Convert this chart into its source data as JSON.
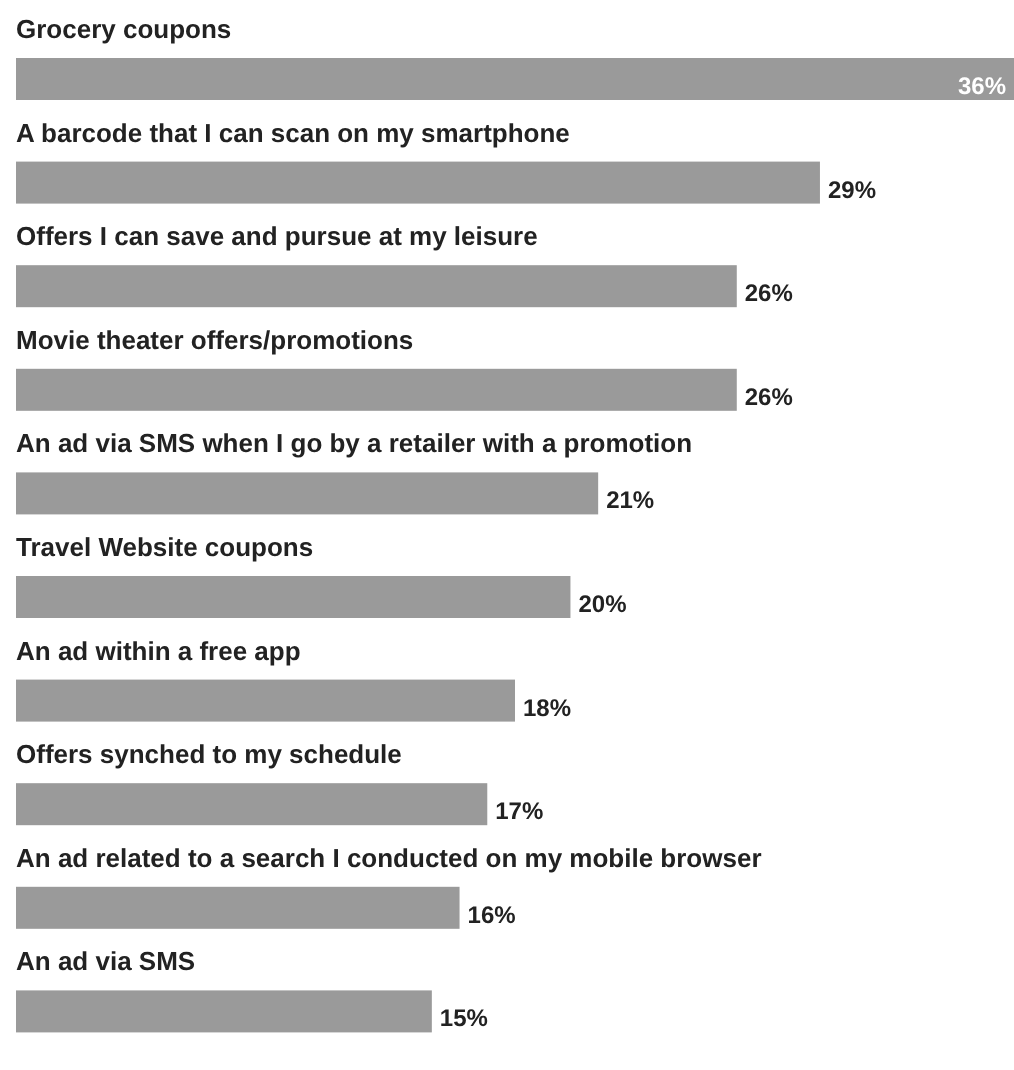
{
  "chart_data": {
    "type": "bar",
    "orientation": "horizontal",
    "categories": [
      "Grocery coupons",
      "A barcode that I can scan on my smartphone",
      "Offers I can save and pursue at my leisure",
      "Movie theater offers/promotions",
      "An ad via SMS when I go by a retailer with a promotion",
      "Travel Website coupons",
      "An ad within a free app",
      "Offers synched to my schedule",
      "An ad related to a search I conducted on my mobile browser",
      "An ad via SMS"
    ],
    "values": [
      36,
      29,
      26,
      26,
      21,
      20,
      18,
      17,
      16,
      15
    ],
    "value_labels": [
      "36%",
      "29%",
      "26%",
      "26%",
      "21%",
      "20%",
      "18%",
      "17%",
      "16%",
      "15%"
    ],
    "color": "#9a9a9a"
  }
}
